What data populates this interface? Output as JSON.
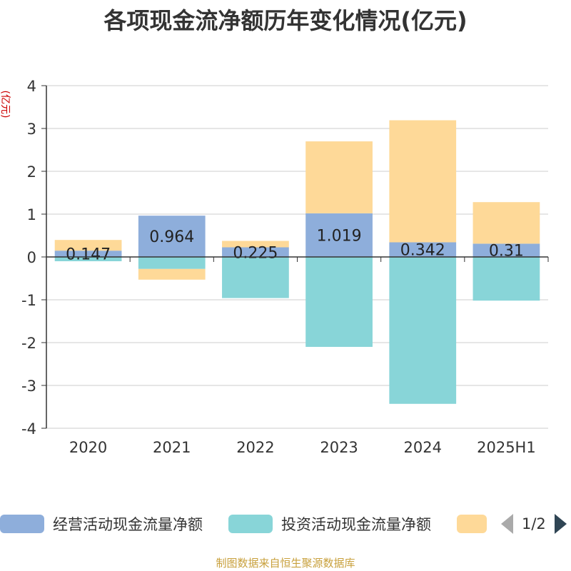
{
  "chart_data": {
    "type": "bar",
    "stacked": true,
    "title": "各项现金流净额历年变化情况(亿元)",
    "ylabel": "(亿元)",
    "xlabel": "",
    "categories": [
      "2020",
      "2021",
      "2022",
      "2023",
      "2024",
      "2025H1"
    ],
    "ylim": [
      -4,
      4
    ],
    "yticks": [
      -4,
      -3,
      -2,
      -1,
      0,
      1,
      2,
      3,
      4
    ],
    "series": [
      {
        "name": "经营活动现金流量净额",
        "color": "#8eaedb",
        "values": [
          0.147,
          0.964,
          0.225,
          1.019,
          0.342,
          0.31
        ],
        "labels": [
          "0.147",
          "0.964",
          "0.225",
          "1.019",
          "0.342",
          "0.31"
        ]
      },
      {
        "name": "投资活动现金流量净额",
        "color": "#88d5d8",
        "values": [
          -0.1,
          -0.28,
          -0.96,
          -2.1,
          -3.43,
          -1.02
        ]
      },
      {
        "name": "",
        "color": "#fed998",
        "values": [
          0.25,
          -0.25,
          0.15,
          1.68,
          2.85,
          0.97
        ]
      }
    ]
  },
  "legend": {
    "page_text": "1/2"
  },
  "footer": {
    "source": "制图数据来自恒生聚源数据库"
  }
}
